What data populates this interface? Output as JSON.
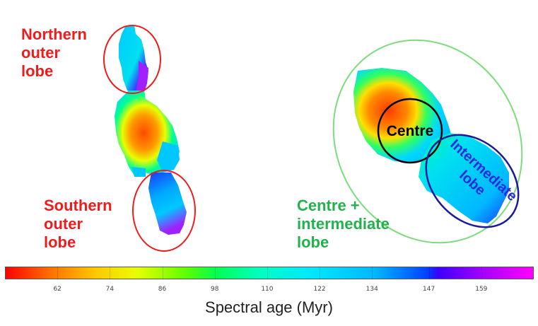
{
  "labels": {
    "northern": "Northern\nouter\nlobe",
    "southern": "Southern\nouter\nlobe",
    "centre_intermediate": "Centre +\nintermediate\nlobe",
    "centre": "Centre",
    "intermediate": "Intermediate\nlobe"
  },
  "colorbar": {
    "title": "Spectral age (Myr)",
    "ticks": [
      "62",
      "74",
      "86",
      "98",
      "110",
      "122",
      "134",
      "147",
      "159"
    ],
    "range": [
      50,
      171
    ]
  },
  "colors": {
    "outer_lobe_circle": "#ee1c1c",
    "combined_ellipse": "#7ddc7d",
    "centre_circle": "#000000",
    "intermediate_ellipse": "#1a1aa0",
    "intermediate_text": "#2a2ae0"
  }
}
